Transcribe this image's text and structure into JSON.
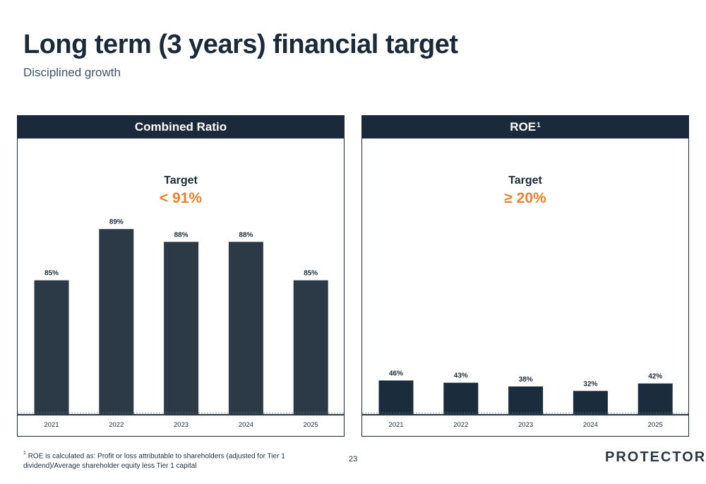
{
  "page": {
    "title": "Long term (3 years) financial target",
    "subtitle": "Disciplined growth",
    "page_number": "23",
    "logo": "PROTECTOR",
    "footnote_marker": "1",
    "footnote": "ROE is calculated as: Profit or loss attributable to shareholders (adjusted for Tier 1 dividend)/Average shareholder equity less Tier 1 capital"
  },
  "panels": {
    "left": {
      "header": "Combined Ratio",
      "target_label": "Target",
      "target_value": "< 91%"
    },
    "right": {
      "header": "ROE",
      "header_sup": "1",
      "target_label": "Target",
      "target_value": "≥ 20%"
    }
  },
  "colors": {
    "bar_left": "#2b3a46",
    "bar_right": "#1b2c3d",
    "accent": "#e8822f",
    "header": "#1b2a3a"
  },
  "chart_data": [
    {
      "type": "bar",
      "title": "Combined Ratio",
      "categories": [
        "2021",
        "2022",
        "2023",
        "2024",
        "2025"
      ],
      "values": [
        85,
        89,
        88,
        88,
        85
      ],
      "value_labels": [
        "85%",
        "89%",
        "88%",
        "88%",
        "85%"
      ],
      "ylim": [
        74.5,
        90.5
      ]
    },
    {
      "type": "bar",
      "title": "ROE",
      "categories": [
        "2021",
        "2022",
        "2023",
        "2024",
        "2025"
      ],
      "values": [
        46,
        43,
        38,
        32,
        42
      ],
      "value_labels": [
        "46%",
        "43%",
        "38%",
        "32%",
        "42%"
      ],
      "ylim": [
        0,
        275
      ]
    }
  ]
}
